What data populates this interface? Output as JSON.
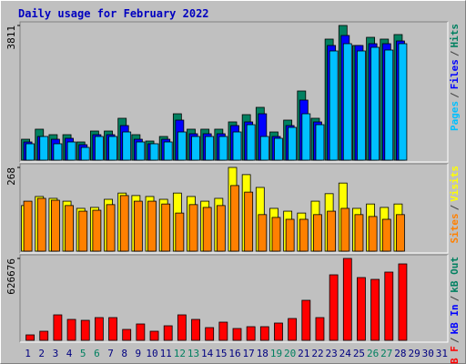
{
  "chart_data": [
    {
      "type": "bar",
      "title": "Daily usage for February 2022",
      "ylim": [
        0,
        3811
      ],
      "yticks": [
        3811
      ],
      "legend_separator": "/",
      "series": [
        {
          "name": "Pages",
          "color": "#00c0ff",
          "values": [
            464,
            670,
            464,
            515,
            361,
            670,
            670,
            798,
            515,
            464,
            515,
            798,
            670,
            670,
            670,
            798,
            1004,
            670,
            618,
            927,
            1313,
            1004,
            3090,
            3296,
            3090,
            3193,
            3116,
            3296,
            null,
            null,
            null
          ]
        },
        {
          "name": "Files",
          "color": "#0000ff",
          "values": [
            515,
            670,
            592,
            618,
            438,
            721,
            721,
            979,
            592,
            464,
            592,
            1133,
            747,
            747,
            747,
            979,
            1082,
            1313,
            670,
            979,
            1700,
            1082,
            3245,
            3528,
            3245,
            3296,
            3296,
            3373,
            null,
            null,
            null
          ]
        },
        {
          "name": "Hits",
          "color": "#008060",
          "values": [
            592,
            876,
            721,
            721,
            515,
            824,
            824,
            1185,
            721,
            541,
            670,
            1313,
            876,
            876,
            876,
            1082,
            1288,
            1494,
            798,
            1133,
            1957,
            1185,
            3425,
            3811,
            3245,
            3476,
            3425,
            3554,
            null,
            null,
            null
          ]
        }
      ]
    },
    {
      "type": "bar",
      "ylim": [
        0,
        268
      ],
      "yticks": [
        268
      ],
      "legend_separator": "/",
      "series": [
        {
          "name": "Sites",
          "color": "#ff8000",
          "values": [
            160,
            169,
            163,
            146,
            128,
            131,
            149,
            178,
            160,
            160,
            151,
            122,
            149,
            140,
            146,
            210,
            189,
            117,
            108,
            102,
            102,
            117,
            128,
            137,
            117,
            111,
            102,
            117,
            null,
            null,
            null
          ]
        },
        {
          "name": "Visits",
          "color": "#ffff00",
          "values": [
            146,
            175,
            169,
            160,
            137,
            140,
            166,
            186,
            178,
            175,
            166,
            186,
            175,
            160,
            169,
            268,
            245,
            204,
            137,
            128,
            122,
            160,
            184,
            218,
            137,
            151,
            140,
            151,
            null,
            null,
            null
          ]
        }
      ]
    },
    {
      "type": "bar",
      "ylim": [
        0,
        626676
      ],
      "yticks": [
        626676
      ],
      "legend_separator": "/",
      "categories": [
        "1",
        "2",
        "3",
        "4",
        "5",
        "6",
        "7",
        "8",
        "9",
        "10",
        "11",
        "12",
        "13",
        "14",
        "15",
        "16",
        "17",
        "18",
        "19",
        "20",
        "21",
        "22",
        "23",
        "24",
        "25",
        "26",
        "27",
        "28",
        "29",
        "30",
        "31"
      ],
      "category_colors": [
        "#000080",
        "#000080",
        "#000080",
        "#000080",
        "#008060",
        "#008060",
        "#000080",
        "#000080",
        "#000080",
        "#000080",
        "#000080",
        "#008060",
        "#008060",
        "#000080",
        "#000080",
        "#000080",
        "#000080",
        "#000080",
        "#008060",
        "#008060",
        "#000080",
        "#000080",
        "#000080",
        "#000080",
        "#000080",
        "#008060",
        "#008060",
        "#000080",
        "#000080",
        "#000080",
        "#000080"
      ],
      "series": [
        {
          "name": "kB F",
          "color": "#ff0000",
          "values": [
            41778,
            69630,
            194964,
            160149,
            153186,
            174075,
            174075,
            83556,
            125334,
            69630,
            111408,
            194964,
            160149,
            97482,
            139260,
            90519,
            104445,
            104445,
            132297,
            167112,
            306372,
            174075,
            501336,
            626676,
            480447,
            466521,
            522225,
            584892,
            null,
            null,
            null
          ]
        },
        {
          "name": "kB In",
          "color": "#0000ff",
          "values": [
            null,
            null,
            null,
            null,
            null,
            null,
            null,
            null,
            null,
            null,
            null,
            null,
            null,
            null,
            null,
            null,
            null,
            null,
            null,
            null,
            null,
            null,
            null,
            null,
            null,
            null,
            null,
            null,
            null,
            null,
            null
          ]
        },
        {
          "name": "kB Out",
          "color": "#008060",
          "values": [
            null,
            null,
            null,
            null,
            null,
            null,
            null,
            null,
            null,
            null,
            null,
            null,
            null,
            null,
            null,
            null,
            null,
            null,
            null,
            null,
            null,
            null,
            null,
            null,
            null,
            null,
            null,
            null,
            null,
            null,
            null
          ]
        }
      ]
    }
  ]
}
